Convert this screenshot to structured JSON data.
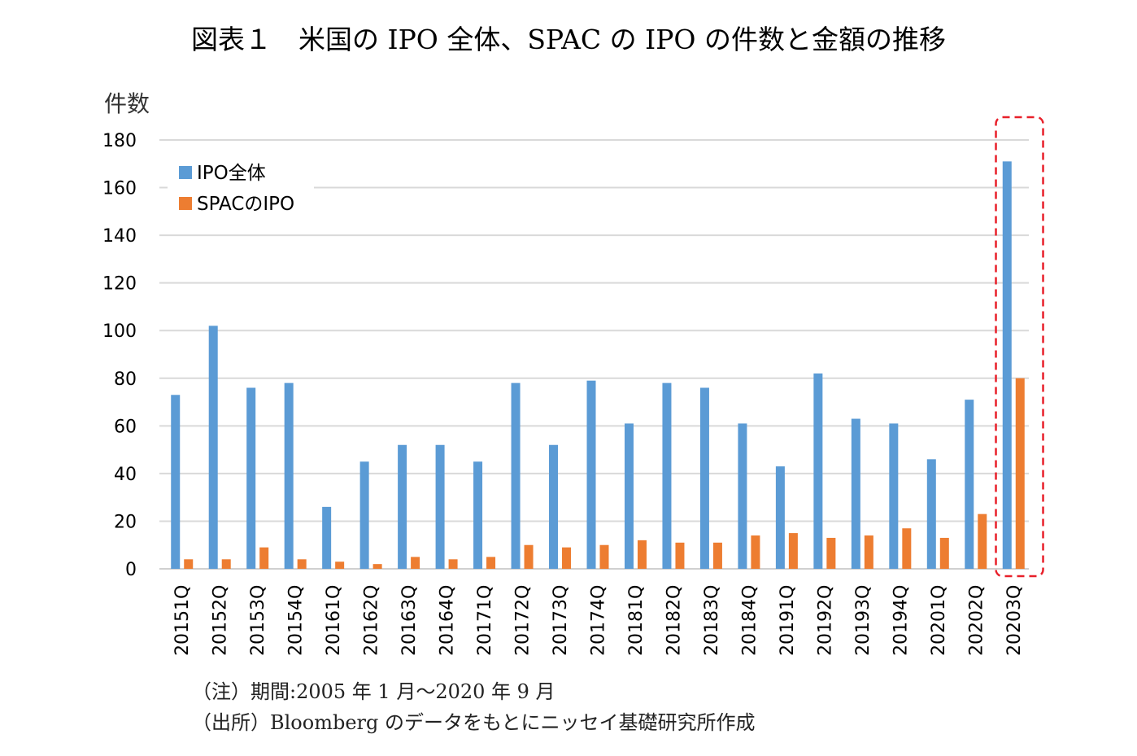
{
  "figure": {
    "title": "図表１　米国の IPO 全体、SPAC の IPO の件数と金額の推移",
    "notes": [
      "（注）期間:2005 年 1 月～2020 年 9 月",
      "（出所）Bloomberg のデータをもとにニッセイ基礎研究所作成"
    ]
  },
  "chart_data": {
    "type": "bar",
    "title": "",
    "xlabel": "",
    "ylabel": "件数",
    "ylim": [
      0,
      180
    ],
    "yticks": [
      0,
      20,
      40,
      60,
      80,
      100,
      120,
      140,
      160,
      180
    ],
    "grid": true,
    "legend_position": "top-left",
    "categories": [
      "20151Q",
      "20152Q",
      "20153Q",
      "20154Q",
      "20161Q",
      "20162Q",
      "20163Q",
      "20164Q",
      "20171Q",
      "20172Q",
      "20173Q",
      "20174Q",
      "20181Q",
      "20182Q",
      "20183Q",
      "20184Q",
      "20191Q",
      "20192Q",
      "20193Q",
      "20194Q",
      "20201Q",
      "20202Q",
      "20203Q"
    ],
    "series": [
      {
        "name": "IPO全体",
        "color": "#5b9bd5",
        "values": [
          73,
          102,
          76,
          78,
          26,
          45,
          52,
          52,
          45,
          78,
          52,
          79,
          61,
          78,
          76,
          61,
          43,
          82,
          63,
          61,
          46,
          71,
          171
        ]
      },
      {
        "name": "SPACのIPO",
        "color": "#ed7d31",
        "values": [
          4,
          4,
          9,
          4,
          3,
          2,
          5,
          4,
          5,
          10,
          9,
          10,
          12,
          11,
          11,
          14,
          15,
          13,
          14,
          17,
          13,
          23,
          80
        ]
      }
    ],
    "highlight": {
      "category": "20203Q",
      "style": "dashed-red-box",
      "color": "#e8202a"
    },
    "colors": {
      "grid": "#d9d9d9",
      "axis_text": "#000000"
    }
  }
}
